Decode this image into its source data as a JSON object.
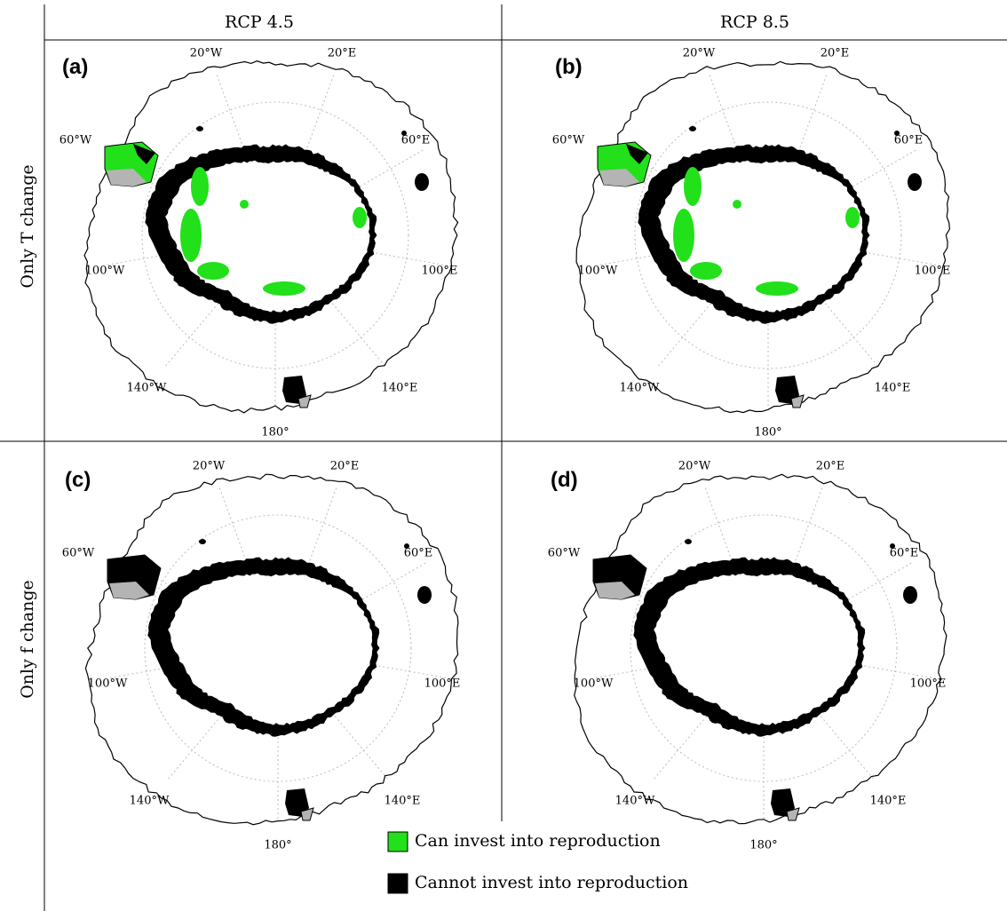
{
  "columns": [
    "RCP 4.5",
    "RCP 8.5"
  ],
  "rows": [
    "Only T change",
    "Only f change"
  ],
  "panels": [
    "(a)",
    "(b)",
    "(c)",
    "(d)"
  ],
  "longitude_labels": [
    "20°W",
    "20°E",
    "60°E",
    "100°E",
    "140°E",
    "180°",
    "140°W",
    "100°W",
    "60°W"
  ],
  "legend": [
    {
      "label": "Can invest into reproduction",
      "color": "#22e01a"
    },
    {
      "label": "Cannot invest into reproduction",
      "color": "#000000"
    }
  ]
}
